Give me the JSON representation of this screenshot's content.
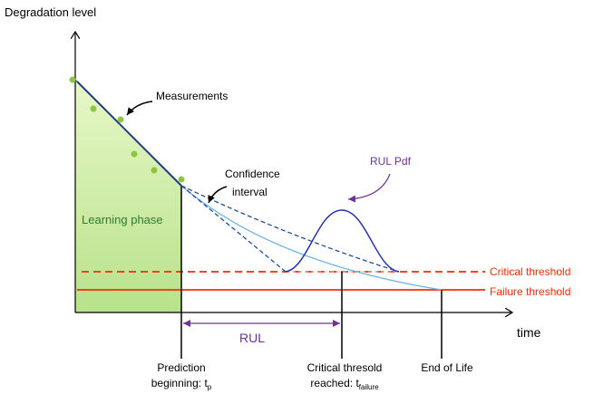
{
  "axes": {
    "y_label": "Degradation level",
    "x_label": "time"
  },
  "annotations": {
    "measurements": "Measurements",
    "confidence_interval": [
      "Confidence",
      "interval"
    ],
    "rul_pdf": "RUL Pdf",
    "learning_phase": "Learning phase",
    "rul": "RUL"
  },
  "thresholds": {
    "critical": "Critical threshold",
    "failure": "Failure threshold"
  },
  "markers": {
    "prediction": {
      "lines": [
        "Prediction",
        "beginning: t"
      ],
      "subscript": "p"
    },
    "critical_reached": {
      "lines": [
        "Critical thresold",
        "reached: t"
      ],
      "subscript": "failure"
    },
    "end_of_life": "End of Life"
  }
}
